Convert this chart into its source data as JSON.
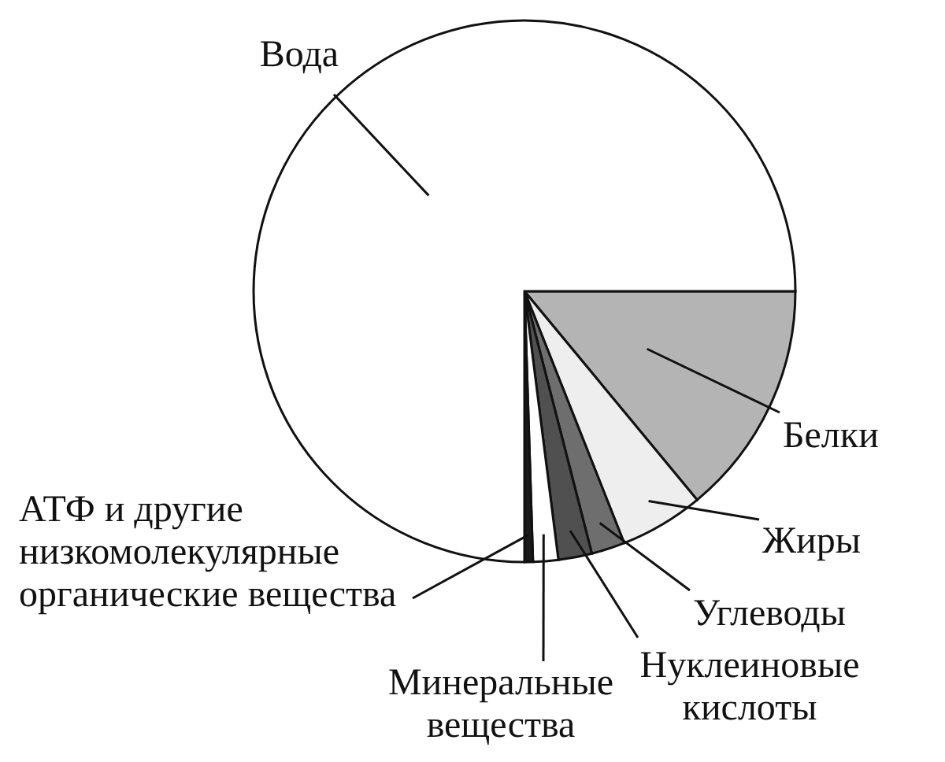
{
  "chart_data": {
    "type": "pie",
    "categories": [
      "Белки",
      "Жиры",
      "Углеводы",
      "Нуклеиновые кислоты",
      "Минеральные вещества",
      "АТФ и другие низкомолекулярные органические вещества",
      "Вода"
    ],
    "values": [
      14,
      5,
      2,
      2,
      1.5,
      0.5,
      75
    ],
    "colors": [
      "#b4b4b4",
      "#eeeeee",
      "#6e6e6e",
      "#505050",
      "#ffffff",
      "#1a1a1a",
      "#ffffff"
    ]
  }
}
